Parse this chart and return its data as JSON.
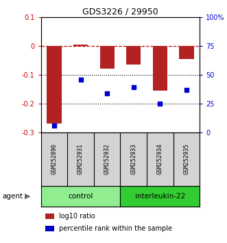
{
  "title": "GDS3226 / 29950",
  "samples": [
    "GSM252890",
    "GSM252931",
    "GSM252932",
    "GSM252933",
    "GSM252934",
    "GSM252935"
  ],
  "bar_values": [
    -0.27,
    0.005,
    -0.08,
    -0.065,
    -0.155,
    -0.045
  ],
  "percentile_values": [
    6,
    46,
    34,
    39,
    25,
    37
  ],
  "ylim_left": [
    -0.3,
    0.1
  ],
  "ylim_right": [
    0,
    100
  ],
  "yticks_left": [
    0.1,
    0,
    -0.1,
    -0.2,
    -0.3
  ],
  "yticks_right": [
    100,
    75,
    50,
    25,
    0
  ],
  "bar_color": "#b22222",
  "scatter_color": "#0000cc",
  "groups": [
    {
      "label": "control",
      "indices": [
        0,
        1,
        2
      ],
      "color": "#90ee90"
    },
    {
      "label": "interleukin-22",
      "indices": [
        3,
        4,
        5
      ],
      "color": "#32cd32"
    }
  ],
  "agent_label": "agent",
  "legend_bar_label": "log10 ratio",
  "legend_scatter_label": "percentile rank within the sample",
  "left_tick_color": "#cc0000",
  "right_tick_color": "#0000cc",
  "zero_line_color": "#cc0000",
  "dotted_line_color": "#000000",
  "fig_width": 3.31,
  "fig_height": 3.54
}
